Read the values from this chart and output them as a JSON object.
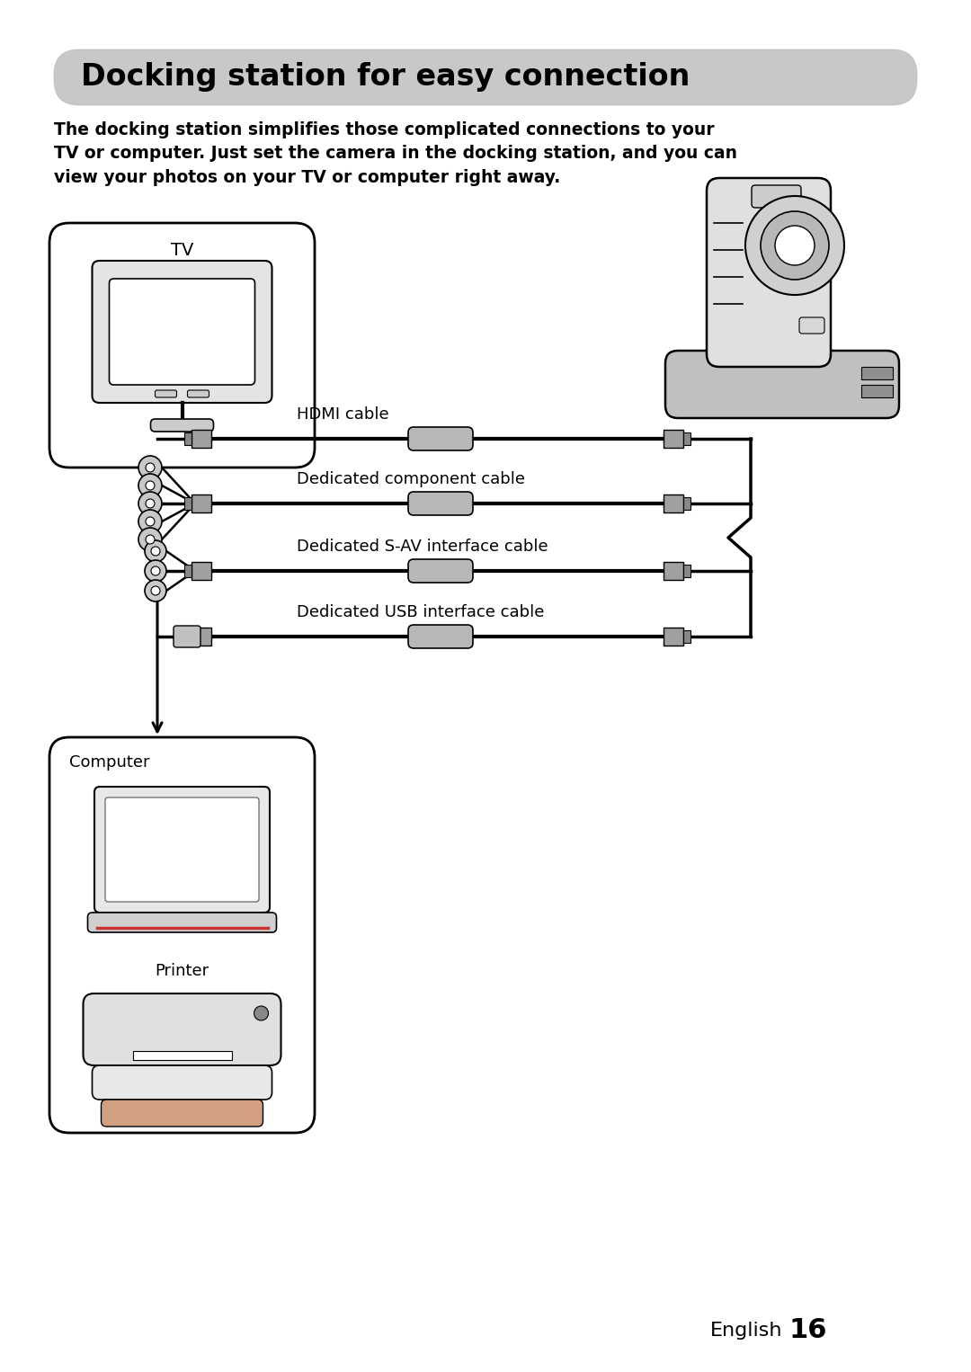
{
  "bg_color": "#ffffff",
  "title_text": "Docking station for easy connection",
  "title_bg": "#cccccc",
  "title_fontsize": 24,
  "body_text": "The docking station simplifies those complicated connections to your\nTV or computer. Just set the camera in the docking station, and you can\nview your photos on your TV or computer right away.",
  "body_fontsize": 13.5,
  "footer_english": "English",
  "footer_num": "16",
  "footer_fontsize": 16,
  "footer_num_fontsize": 22,
  "cable_labels": [
    "HDMI cable",
    "Dedicated component cable",
    "Dedicated S-AV interface cable",
    "Dedicated USB interface cable"
  ],
  "cable_label_fontsize": 13,
  "tv_label": "TV",
  "computer_label": "Computer",
  "printer_label": "Printer"
}
